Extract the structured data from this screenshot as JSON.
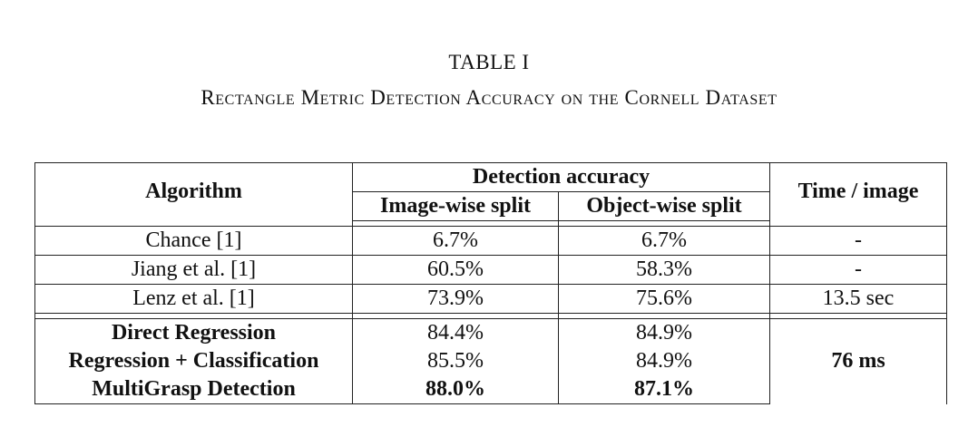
{
  "caption": {
    "label": "TABLE I",
    "title": "Rectangle Metric Detection Accuracy on the Cornell Dataset"
  },
  "table": {
    "header": {
      "algorithm": "Algorithm",
      "detection_accuracy": "Detection accuracy",
      "image_wise": "Image-wise split",
      "object_wise": "Object-wise split",
      "time": "Time / image"
    },
    "baselines": [
      {
        "algorithm": "Chance [1]",
        "image_wise": "6.7%",
        "object_wise": "6.7%",
        "time": "-"
      },
      {
        "algorithm": "Jiang et al. [1]",
        "image_wise": "60.5%",
        "object_wise": "58.3%",
        "time": "-"
      },
      {
        "algorithm": "Lenz et al. [1]",
        "image_wise": "73.9%",
        "object_wise": "75.6%",
        "time": "13.5 sec"
      }
    ],
    "ours": [
      {
        "algorithm": "Direct Regression",
        "image_wise": "84.4%",
        "object_wise": "84.9%"
      },
      {
        "algorithm": "Regression + Classification",
        "image_wise": "85.5%",
        "object_wise": "84.9%"
      },
      {
        "algorithm": "MultiGrasp Detection",
        "image_wise": "88.0%",
        "object_wise": "87.1%"
      }
    ],
    "ours_time": "76 ms"
  }
}
